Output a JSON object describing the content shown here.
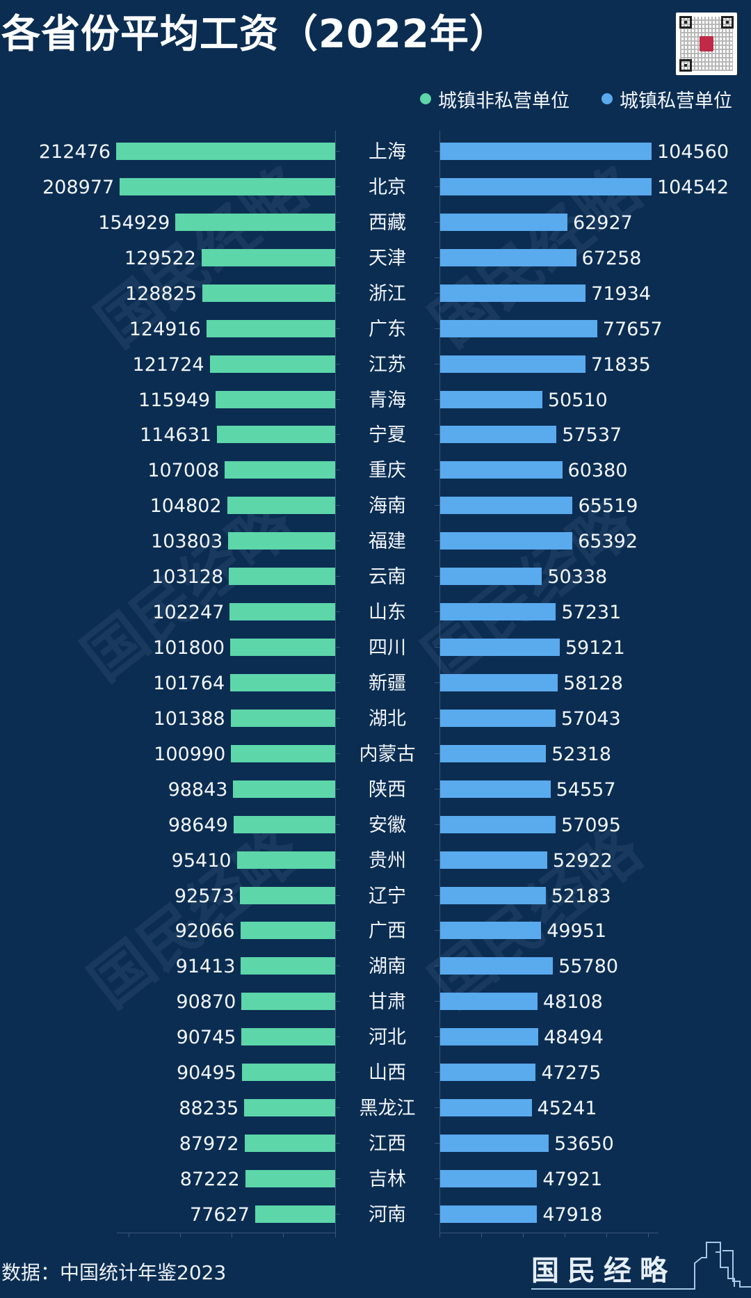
{
  "header": {
    "title": "各省份平均工资（2022年）",
    "qr_code": "qr-code-icon"
  },
  "legend": [
    {
      "label": "城镇非私营单位",
      "color": "#5dd6a9"
    },
    {
      "label": "城镇私营单位",
      "color": "#5aaaee"
    }
  ],
  "footer": {
    "source": "数据：中国统计年鉴2023",
    "brand": "国民经略"
  },
  "watermark": "国民经略",
  "colors": {
    "background": "#0b2d52",
    "non_private": "#5dd6a9",
    "private": "#5aaaee",
    "axis": "#3b5777"
  },
  "chart_data": {
    "type": "bar",
    "orientation": "horizontal-butterfly",
    "title": "各省份平均工资（2022年）",
    "xlabel": "",
    "ylabel": "",
    "legend_position": "top-right",
    "grid": false,
    "categories": [
      "上海",
      "北京",
      "西藏",
      "天津",
      "浙江",
      "广东",
      "江苏",
      "青海",
      "宁夏",
      "重庆",
      "海南",
      "福建",
      "云南",
      "山东",
      "四川",
      "新疆",
      "湖北",
      "内蒙古",
      "陕西",
      "安徽",
      "贵州",
      "辽宁",
      "广西",
      "湖南",
      "甘肃",
      "河北",
      "山西",
      "黑龙江",
      "江西",
      "吉林",
      "河南"
    ],
    "series": [
      {
        "name": "城镇非私营单位",
        "side": "left",
        "color": "#5dd6a9",
        "values": [
          212476,
          208977,
          154929,
          129522,
          128825,
          124916,
          121724,
          115949,
          114631,
          107008,
          104802,
          103803,
          103128,
          102247,
          101800,
          101764,
          101388,
          100990,
          98843,
          98649,
          95410,
          92573,
          92066,
          91413,
          90870,
          90745,
          90495,
          88235,
          87972,
          87222,
          77627
        ]
      },
      {
        "name": "城镇私营单位",
        "side": "right",
        "color": "#5aaaee",
        "values": [
          104560,
          104542,
          62927,
          67258,
          71934,
          77657,
          71835,
          50510,
          57537,
          60380,
          65519,
          65392,
          50338,
          57231,
          59121,
          58128,
          57043,
          52318,
          54557,
          57095,
          52922,
          52183,
          49951,
          55780,
          48108,
          48494,
          47275,
          45241,
          53650,
          47921,
          47918
        ]
      }
    ],
    "left_axis_range": [
      0,
      250000
    ],
    "right_axis_range": [
      0,
      120000
    ]
  }
}
